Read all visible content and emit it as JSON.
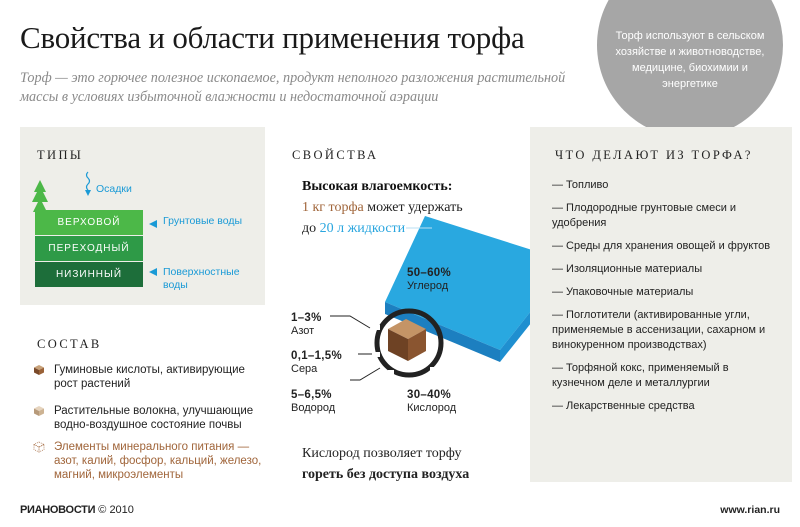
{
  "header": {
    "title": "Свойства и области применения торфа",
    "subtitle": "Торф — это горючее полезное ископаемое, продукт неполного разложения растительной массы в условиях избыточной влажности и недостаточной аэрации"
  },
  "callout": {
    "text": "Торф используют в сельском хозяйстве и животноводстве, медицине, биохимии и энергетике"
  },
  "types": {
    "heading": "ТИПЫ",
    "precipitation": "Осадки",
    "layers": [
      "ВЕРХОВОЙ",
      "ПЕРЕХОДНЫЙ",
      "НИЗИННЫЙ"
    ],
    "groundwater": "Грунтовые воды",
    "surfacewater": "Поверхностные воды",
    "colors": {
      "top": "#4cb848",
      "middle": "#2e9a47",
      "bottom": "#1d6e3a",
      "water": "#1a9ad6"
    }
  },
  "composition": {
    "heading": "СОСТАВ",
    "items": [
      "Гуминовые кислоты, активирующие рост растений",
      "Растительные волокна, улучшающие водно-воздушное состояние почвы",
      "Элементы минерального питания — азот, калий, фосфор, кальций, железо, магний, микроэлементы"
    ]
  },
  "properties": {
    "heading": "СВОЙСТВА",
    "capacity_title": "Высокая влагоемкость:",
    "amount_peat": "1 кг торфа",
    "can_hold": " может удержать",
    "up_to": "до ",
    "amount_liquid": "20 л жидкости",
    "elements": [
      {
        "pct": "50–60%",
        "name": "Углерод"
      },
      {
        "pct": "1–3%",
        "name": "Азот"
      },
      {
        "pct": "0,1–1,5%",
        "name": "Сера"
      },
      {
        "pct": "5–6,5%",
        "name": "Водород"
      },
      {
        "pct": "30–40%",
        "name": "Кислород"
      }
    ],
    "burn_line1": "Кислород позволяет торфу",
    "burn_line2": "гореть без доступа воздуха"
  },
  "uses": {
    "heading": "ЧТО ДЕЛАЮТ ИЗ ТОРФА?",
    "items": [
      "— Топливо",
      "— Плодородные грунтовые смеси и удобрения",
      "— Среды для хранения овощей и фруктов",
      "— Изоляционные материалы",
      "— Упаковочные материалы",
      "— Поглотители (активированные угли, применяемые в ассенизации, сахарном и винокуренном производствах)",
      "— Торфяной кокс, применяемый в кузнечном деле и металлургии",
      "— Лекарственные средства"
    ]
  },
  "footer": {
    "logo": "РИАНОВОСТИ",
    "copyright": "© 2010",
    "url": "www.rian.ru"
  }
}
